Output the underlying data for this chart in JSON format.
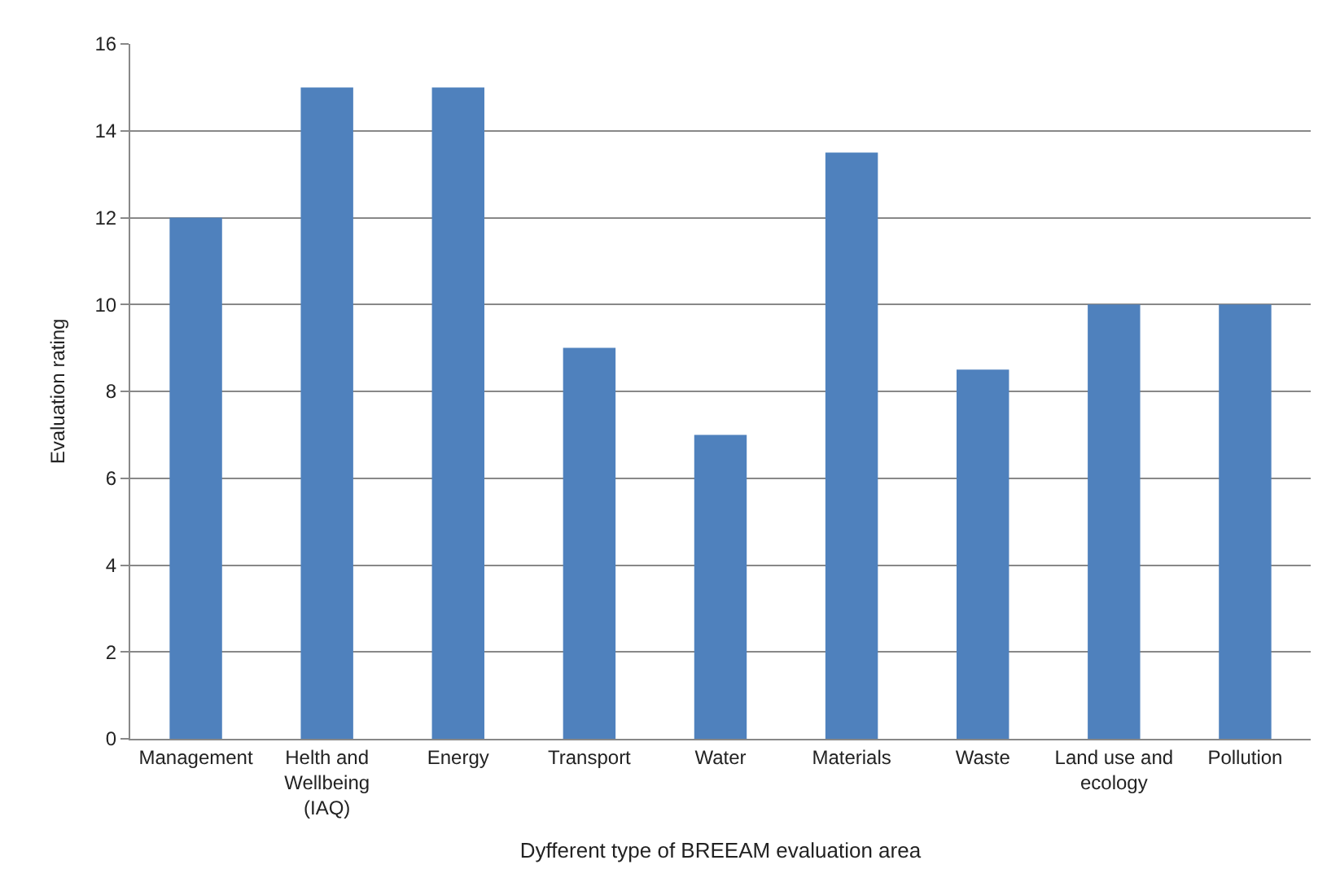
{
  "chart_data": {
    "type": "bar",
    "xlabel": "Dyfferent type of BREEAM evaluation area",
    "ylabel": "Evaluation rating",
    "categories": [
      "Management",
      "Helth and Wellbeing (IAQ)",
      "Energy",
      "Transport",
      "Water",
      "Materials",
      "Waste",
      "Land use and ecology",
      "Pollution"
    ],
    "values": [
      12,
      15,
      15,
      9,
      7,
      13.5,
      8.5,
      10,
      10
    ],
    "color": "#4f81bd",
    "ylim": [
      0,
      16
    ],
    "yticks": [
      0,
      2,
      4,
      6,
      8,
      10,
      12,
      14,
      16
    ],
    "grid": "y"
  }
}
